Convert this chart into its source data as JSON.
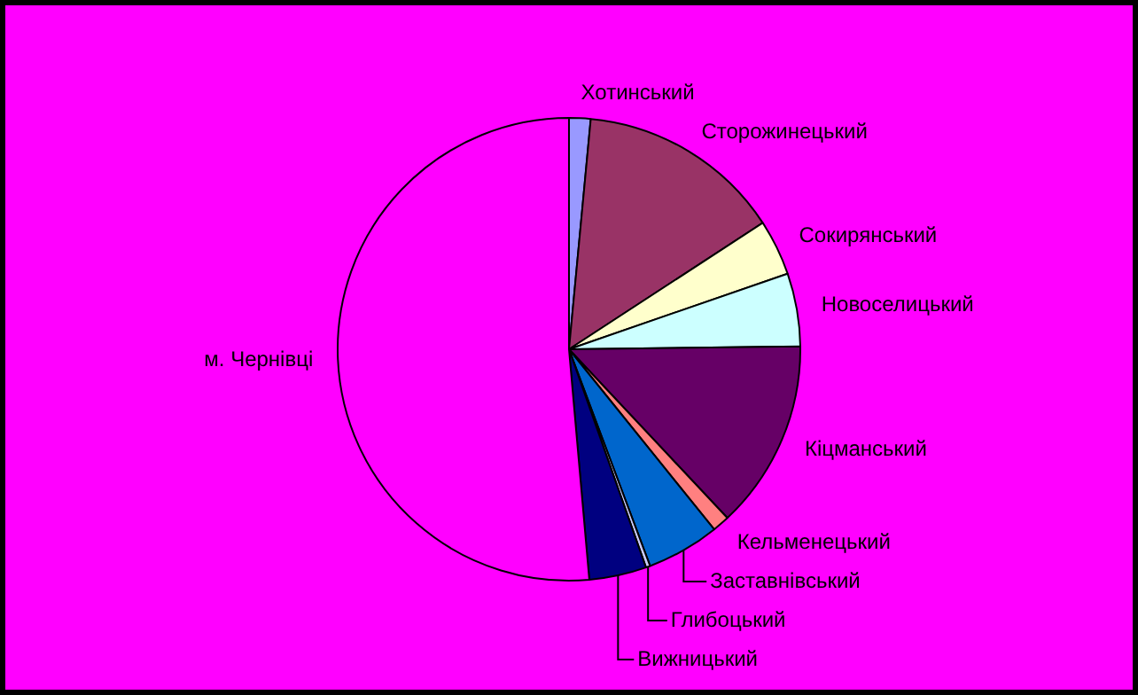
{
  "chart_data": {
    "type": "pie",
    "categories": [
      "Хотинський",
      "Сторожинецький",
      "Сокирянський",
      "Новоселицький",
      "Кіцманський",
      "Кельменецький",
      "Заставнівський",
      "Глибоцький",
      "Вижницький",
      "м. Чернівці"
    ],
    "values": [
      1.5,
      14.3,
      3.9,
      5.1,
      13.2,
      1.2,
      5.1,
      0.3,
      4.0,
      51.4
    ],
    "colors": [
      "#9999ff",
      "#993366",
      "#ffffcc",
      "#ccffff",
      "#660066",
      "#ff8080",
      "#0066cc",
      "#ccccff",
      "#000080",
      "#ff00ff"
    ],
    "legend": false
  }
}
